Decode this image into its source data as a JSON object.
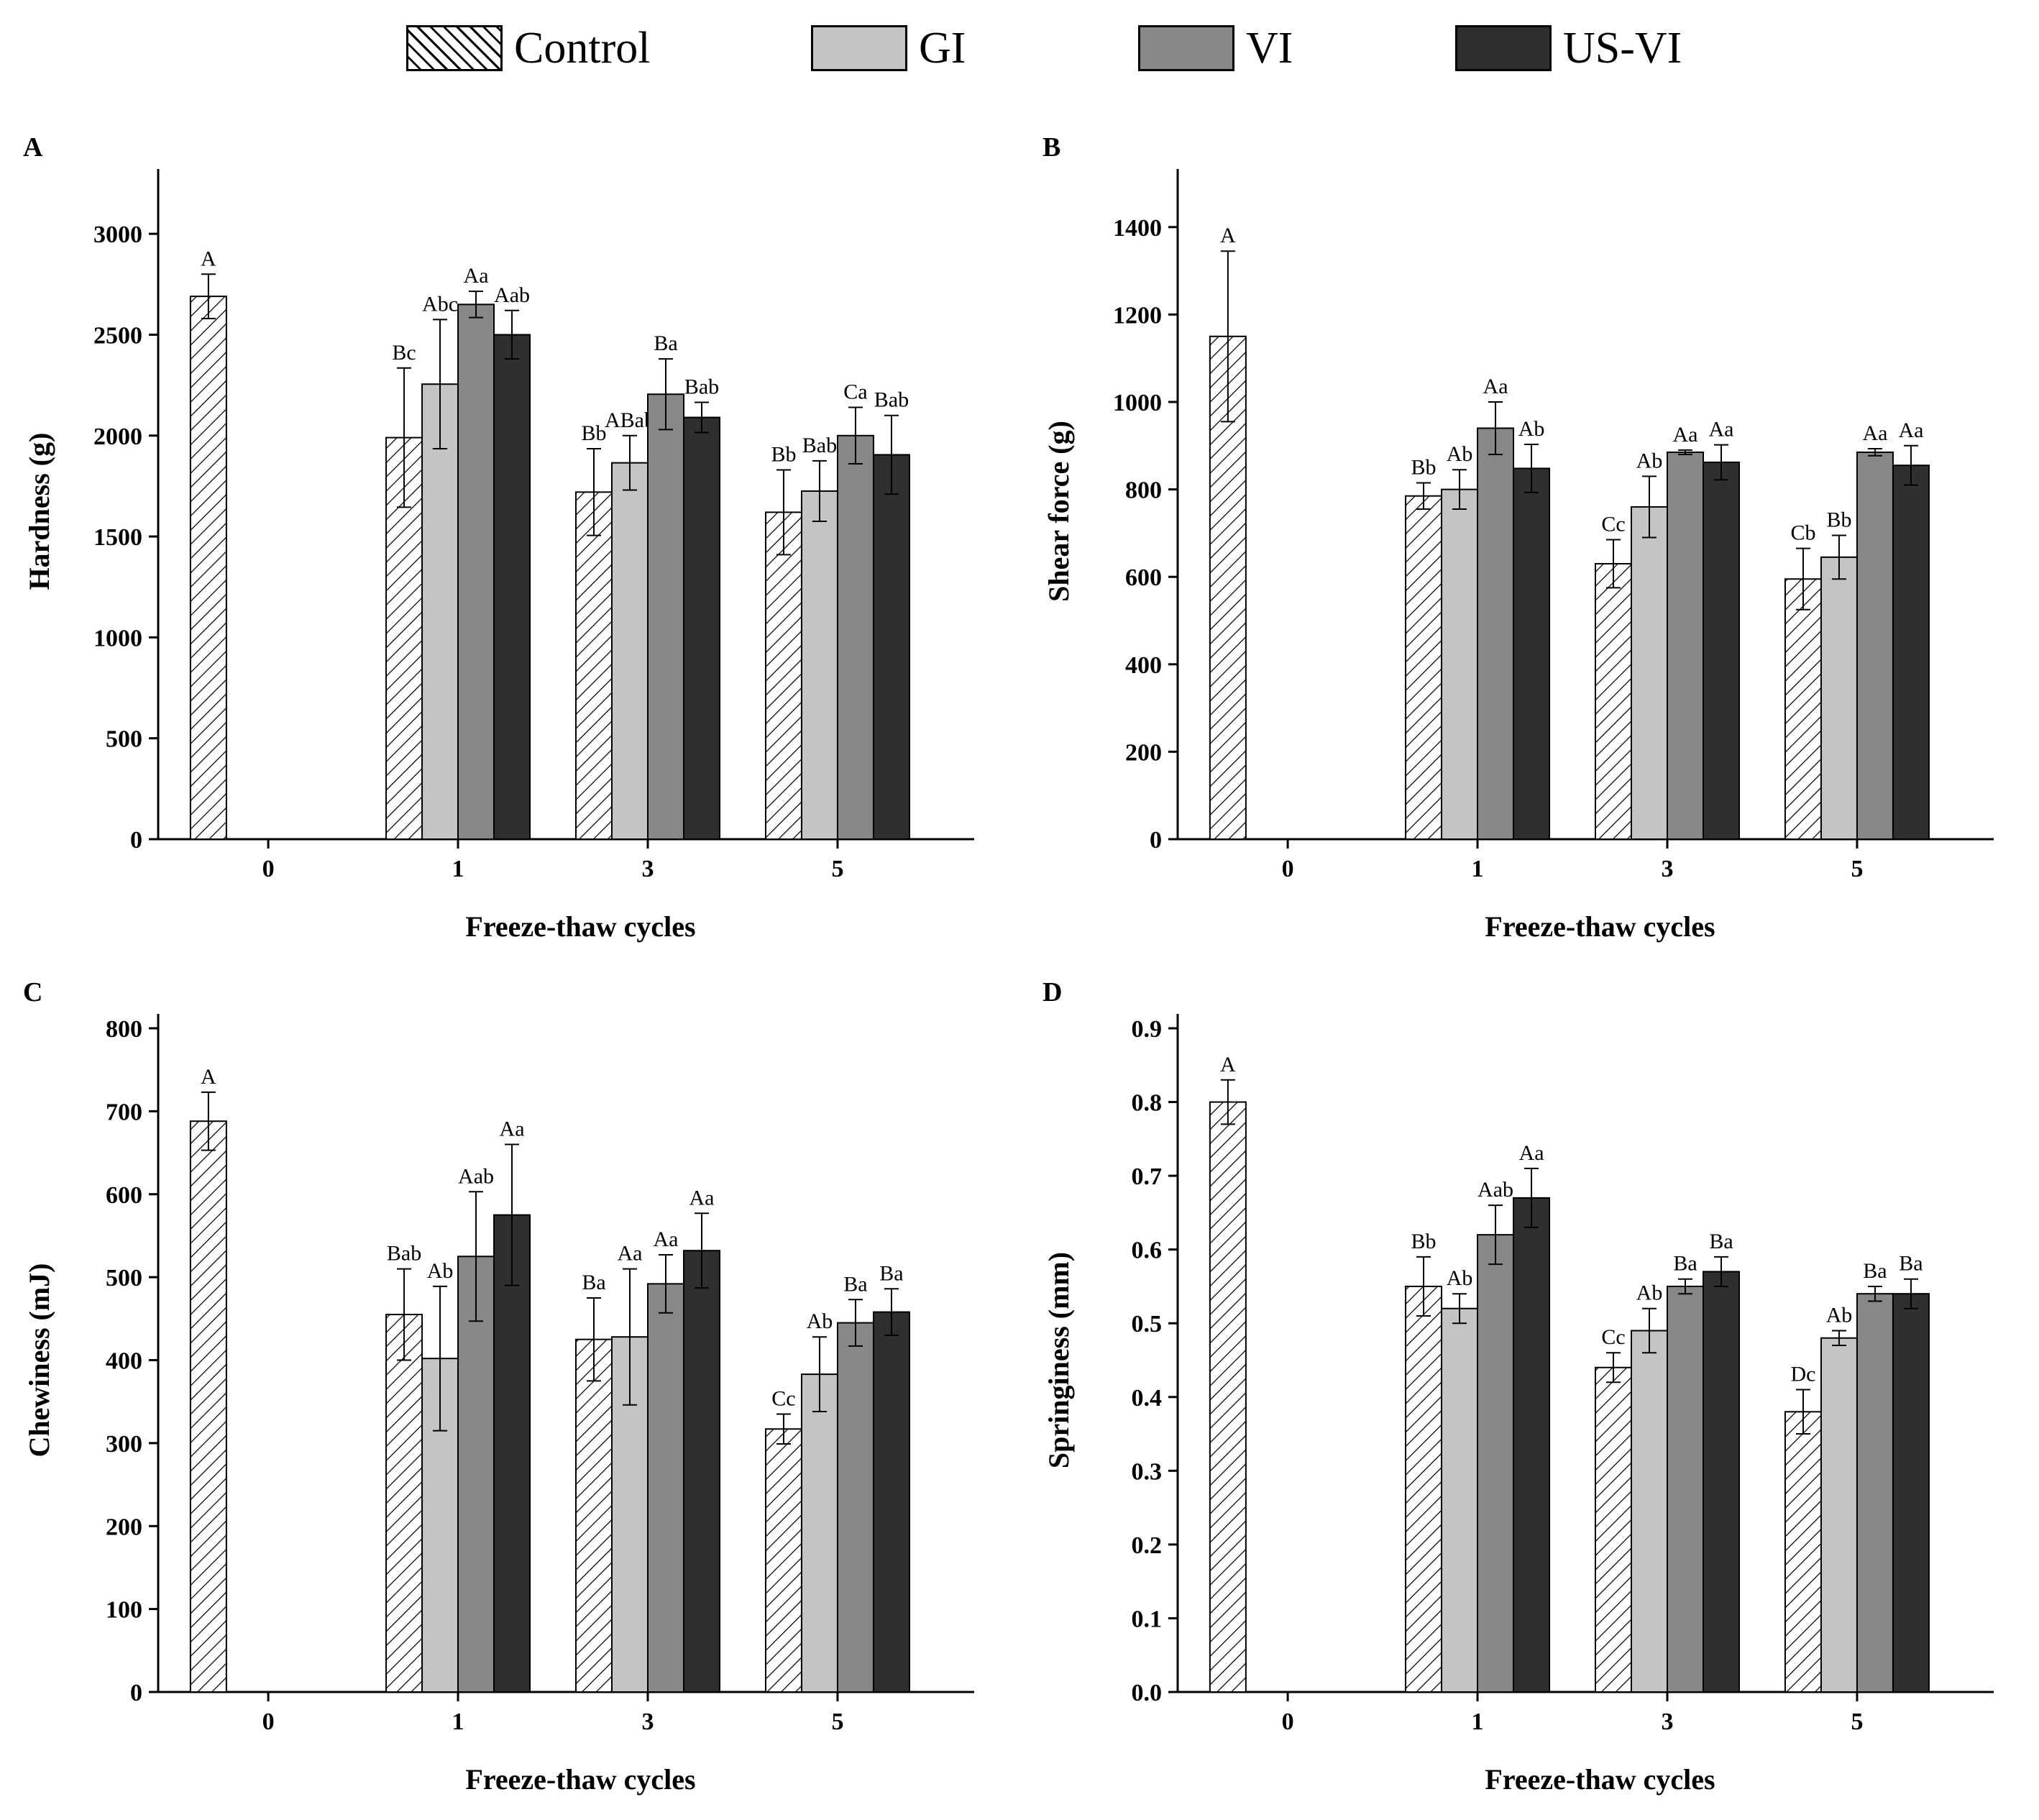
{
  "legend": [
    {
      "name": "Control",
      "fill": "hatch"
    },
    {
      "name": "GI",
      "fill": "#c4c4c4"
    },
    {
      "name": "VI",
      "fill": "#888888"
    },
    {
      "name": "US-VI",
      "fill": "#2f2f2f"
    }
  ],
  "colors": {
    "gi": "#c4c4c4",
    "vi": "#888888",
    "usvi": "#2f2f2f",
    "control": "hatch",
    "axis": "#000000"
  },
  "chart_data": [
    {
      "type": "bar",
      "panel_label": "A",
      "xlabel": "Freeze-thaw cycles",
      "ylabel": "Hardness (g)",
      "categories": [
        "0",
        "1",
        "3",
        "5"
      ],
      "ylim": [
        0,
        3250
      ],
      "yticks": [
        0,
        500,
        1000,
        1500,
        2000,
        2500,
        3000
      ],
      "series": [
        {
          "name": "Control",
          "values": [
            2690,
            1990,
            1720,
            1620
          ],
          "errors": [
            110,
            345,
            215,
            210
          ],
          "labels": [
            "A",
            "Bc",
            "Bb",
            "Bb"
          ]
        },
        {
          "name": "GI",
          "values": [
            null,
            2255,
            1865,
            1725
          ],
          "errors": [
            null,
            320,
            135,
            150
          ],
          "labels": [
            "",
            "Abc",
            "ABab",
            "Bab"
          ]
        },
        {
          "name": "VI",
          "values": [
            null,
            2650,
            2205,
            2000
          ],
          "errors": [
            null,
            65,
            175,
            140
          ],
          "labels": [
            "",
            "Aa",
            "Ba",
            "Ca"
          ]
        },
        {
          "name": "US-VI",
          "values": [
            null,
            2500,
            2090,
            1905
          ],
          "errors": [
            null,
            120,
            75,
            195
          ],
          "labels": [
            "",
            "Aab",
            "Bab",
            "Bab"
          ]
        }
      ]
    },
    {
      "type": "bar",
      "panel_label": "B",
      "xlabel": "Freeze-thaw cycles",
      "ylabel": "Shear force (g)",
      "categories": [
        "0",
        "1",
        "3",
        "5"
      ],
      "ylim": [
        0,
        1500
      ],
      "yticks": [
        0,
        200,
        400,
        600,
        800,
        1000,
        1200,
        1400
      ],
      "series": [
        {
          "name": "Control",
          "values": [
            1150,
            785,
            630,
            595
          ],
          "errors": [
            195,
            30,
            55,
            70
          ],
          "labels": [
            "A",
            "Bb",
            "Cc",
            "Cb"
          ]
        },
        {
          "name": "GI",
          "values": [
            null,
            800,
            760,
            645
          ],
          "errors": [
            null,
            45,
            70,
            50
          ],
          "labels": [
            "",
            "Ab",
            "Ab",
            "Bb"
          ]
        },
        {
          "name": "VI",
          "values": [
            null,
            940,
            885,
            885
          ],
          "errors": [
            null,
            60,
            5,
            8
          ],
          "labels": [
            "",
            "Aa",
            "Aa",
            "Aa"
          ]
        },
        {
          "name": "US-VI",
          "values": [
            null,
            848,
            862,
            855
          ],
          "errors": [
            null,
            55,
            40,
            45
          ],
          "labels": [
            "",
            "Ab",
            "Aa",
            "Aa"
          ]
        }
      ]
    },
    {
      "type": "bar",
      "panel_label": "C",
      "xlabel": "Freeze-thaw cycles",
      "ylabel": "Chewiness (mJ)",
      "categories": [
        "0",
        "1",
        "3",
        "5"
      ],
      "ylim": [
        0,
        800
      ],
      "yticks": [
        0,
        100,
        200,
        300,
        400,
        500,
        600,
        700,
        800
      ],
      "series": [
        {
          "name": "Control",
          "values": [
            688,
            455,
            425,
            317
          ],
          "errors": [
            35,
            55,
            50,
            18
          ],
          "labels": [
            "A",
            "Bab",
            "Ba",
            "Cc"
          ]
        },
        {
          "name": "GI",
          "values": [
            null,
            402,
            428,
            383
          ],
          "errors": [
            null,
            87,
            82,
            45
          ],
          "labels": [
            "",
            "Ab",
            "Aa",
            "Ab"
          ]
        },
        {
          "name": "VI",
          "values": [
            null,
            525,
            492,
            445
          ],
          "errors": [
            null,
            78,
            35,
            28
          ],
          "labels": [
            "",
            "Aab",
            "Aa",
            "Ba"
          ]
        },
        {
          "name": "US-VI",
          "values": [
            null,
            575,
            532,
            458
          ],
          "errors": [
            null,
            85,
            45,
            28
          ],
          "labels": [
            "",
            "Aa",
            "Aa",
            "Ba"
          ]
        }
      ]
    },
    {
      "type": "bar",
      "panel_label": "D",
      "xlabel": "Freeze-thaw cycles",
      "ylabel": "Springiness (mm)",
      "categories": [
        "0",
        "1",
        "3",
        "5"
      ],
      "ylim": [
        0,
        0.9
      ],
      "yticks": [
        "0.0",
        "0.1",
        "0.2",
        "0.3",
        "0.4",
        "0.5",
        "0.6",
        "0.7",
        "0.8",
        "0.9"
      ],
      "series": [
        {
          "name": "Control",
          "values": [
            0.8,
            0.55,
            0.44,
            0.38
          ],
          "errors": [
            0.03,
            0.04,
            0.02,
            0.03
          ],
          "labels": [
            "A",
            "Bb",
            "Cc",
            "Dc"
          ]
        },
        {
          "name": "GI",
          "values": [
            null,
            0.52,
            0.49,
            0.48
          ],
          "errors": [
            null,
            0.02,
            0.03,
            0.01
          ],
          "labels": [
            "",
            "Ab",
            "Ab",
            "Ab"
          ]
        },
        {
          "name": "VI",
          "values": [
            null,
            0.62,
            0.55,
            0.54
          ],
          "errors": [
            null,
            0.04,
            0.01,
            0.01
          ],
          "labels": [
            "",
            "Aab",
            "Ba",
            "Ba"
          ]
        },
        {
          "name": "US-VI",
          "values": [
            null,
            0.67,
            0.57,
            0.54
          ],
          "errors": [
            null,
            0.04,
            0.02,
            0.02
          ],
          "labels": [
            "",
            "Aa",
            "Ba",
            "Ba"
          ]
        }
      ]
    }
  ]
}
